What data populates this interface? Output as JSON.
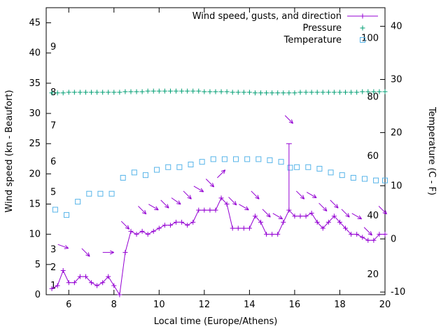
{
  "page": {
    "background": "#ffffff"
  },
  "chart_data": {
    "type": "line",
    "title": "",
    "xlabel": "Local time (Europe/Athens)",
    "ylabel_left": "Wind speed (kn - Beaufort)",
    "ylabel_right": "Temperature (C - F)",
    "xlim": [
      5,
      20
    ],
    "xticks": [
      6,
      8,
      10,
      12,
      14,
      16,
      18,
      20
    ],
    "ylim_left": [
      0,
      47.5
    ],
    "yticks_left": [
      0,
      5,
      10,
      15,
      20,
      25,
      30,
      35,
      40,
      45
    ],
    "ylim_right": [
      -10.5,
      43.5
    ],
    "yticks_right": [
      -10,
      0,
      10,
      20,
      30,
      40
    ],
    "grid": false,
    "beaufort_scale_labels": [
      {
        "label": "1",
        "kn": 1.5
      },
      {
        "label": "2",
        "kn": 4.5
      },
      {
        "label": "3",
        "kn": 7.5
      },
      {
        "label": "5",
        "kn": 17
      },
      {
        "label": "6",
        "kn": 22
      },
      {
        "label": "7",
        "kn": 28
      },
      {
        "label": "8",
        "kn": 33.5
      },
      {
        "label": "9",
        "kn": 41
      }
    ],
    "fahrenheit_scale_labels": [
      {
        "label": "20",
        "c": -6.7
      },
      {
        "label": "40",
        "c": 4.4
      },
      {
        "label": "60",
        "c": 15.6
      },
      {
        "label": "80",
        "c": 26.7
      },
      {
        "label": "100",
        "c": 37.8
      }
    ],
    "legend": {
      "position": "top-right-inside",
      "entries": [
        {
          "label": "Wind speed, gusts, and direction",
          "marker": "line-plus",
          "color": "#9400d3"
        },
        {
          "label": "Pressure",
          "marker": "plus",
          "color": "#009e73"
        },
        {
          "label": "Temperature",
          "marker": "square",
          "color": "#56b4e9"
        }
      ]
    },
    "series": {
      "wind": {
        "name": "Wind speed (kn)",
        "color": "#9400d3",
        "x0": 5.25,
        "dx": 0.25,
        "y": [
          1,
          1.5,
          4,
          2,
          2,
          3,
          3,
          2,
          1.5,
          2,
          3,
          1.5,
          0,
          7,
          10.5,
          10,
          10.5,
          10,
          10.5,
          11,
          11.5,
          11.5,
          12,
          12,
          11.5,
          12,
          14,
          14,
          14,
          14,
          16,
          15,
          11,
          11,
          11,
          11,
          13,
          12,
          10,
          10,
          10,
          12,
          14,
          13,
          13,
          13,
          13.5,
          12,
          11,
          12,
          13,
          12,
          11,
          10,
          10,
          9.5,
          9,
          9,
          10,
          10
        ]
      },
      "gust": {
        "name": "Gust",
        "color": "#9400d3",
        "x": 15.75,
        "y_low": 14,
        "y_high": 25
      },
      "pressure": {
        "name": "Pressure",
        "color": "#009e73",
        "x0": 5.25,
        "dx": 0.25,
        "y": [
          33.4,
          33.4,
          33.4,
          33.5,
          33.5,
          33.5,
          33.5,
          33.5,
          33.5,
          33.5,
          33.5,
          33.5,
          33.5,
          33.6,
          33.6,
          33.6,
          33.6,
          33.7,
          33.7,
          33.7,
          33.7,
          33.7,
          33.7,
          33.7,
          33.7,
          33.7,
          33.7,
          33.6,
          33.6,
          33.6,
          33.6,
          33.6,
          33.5,
          33.5,
          33.5,
          33.5,
          33.4,
          33.4,
          33.4,
          33.4,
          33.4,
          33.4,
          33.4,
          33.4,
          33.5,
          33.5,
          33.5,
          33.5,
          33.5,
          33.5,
          33.5,
          33.5,
          33.5,
          33.5,
          33.5,
          33.6,
          33.6,
          33.6,
          33.6,
          33.6
        ]
      },
      "temperature": {
        "name": "Temperature (C)",
        "color": "#56b4e9",
        "x": [
          5.4,
          5.9,
          6.4,
          6.9,
          7.4,
          7.9,
          8.4,
          8.9,
          9.4,
          9.9,
          10.4,
          10.9,
          11.4,
          11.9,
          12.4,
          12.9,
          13.4,
          13.9,
          14.4,
          14.9,
          15.4,
          15.8,
          16.1,
          16.6,
          17.1,
          17.6,
          18.1,
          18.6,
          19.1,
          19.6,
          20.0
        ],
        "c": [
          5.5,
          4.5,
          7.0,
          8.5,
          8.5,
          8.5,
          11.5,
          12.5,
          12.0,
          13.0,
          13.5,
          13.5,
          14.0,
          14.5,
          15.0,
          15.0,
          15.0,
          15.0,
          15.0,
          14.8,
          14.5,
          13.4,
          13.5,
          13.5,
          13.2,
          12.5,
          12.0,
          11.5,
          11.3,
          11.0,
          11.0
        ]
      },
      "direction_arrows": [
        {
          "x": 5.75,
          "kn": 8,
          "angle": 110
        },
        {
          "x": 6.75,
          "kn": 7,
          "angle": 135
        },
        {
          "x": 7.75,
          "kn": 7,
          "angle": 90
        },
        {
          "x": 8.5,
          "kn": 11.5,
          "angle": 135
        },
        {
          "x": 9.25,
          "kn": 14,
          "angle": 135
        },
        {
          "x": 9.75,
          "kn": 14.5,
          "angle": 120
        },
        {
          "x": 10.25,
          "kn": 15,
          "angle": 135
        },
        {
          "x": 10.75,
          "kn": 15.5,
          "angle": 125
        },
        {
          "x": 11.25,
          "kn": 16.5,
          "angle": 135
        },
        {
          "x": 11.75,
          "kn": 17.5,
          "angle": 120
        },
        {
          "x": 12.25,
          "kn": 18.5,
          "angle": 135
        },
        {
          "x": 12.75,
          "kn": 20,
          "angle": 45
        },
        {
          "x": 13.25,
          "kn": 15.5,
          "angle": 135
        },
        {
          "x": 13.75,
          "kn": 14.5,
          "angle": 120
        },
        {
          "x": 14.25,
          "kn": 16.5,
          "angle": 135
        },
        {
          "x": 14.75,
          "kn": 13.5,
          "angle": 135
        },
        {
          "x": 15.25,
          "kn": 13,
          "angle": 120
        },
        {
          "x": 15.75,
          "kn": 29,
          "angle": 135
        },
        {
          "x": 16.25,
          "kn": 16.5,
          "angle": 135
        },
        {
          "x": 16.75,
          "kn": 16.5,
          "angle": 120
        },
        {
          "x": 17.25,
          "kn": 14.5,
          "angle": 135
        },
        {
          "x": 17.75,
          "kn": 15,
          "angle": 135
        },
        {
          "x": 18.25,
          "kn": 13.5,
          "angle": 135
        },
        {
          "x": 18.75,
          "kn": 13,
          "angle": 120
        },
        {
          "x": 19.25,
          "kn": 10.5,
          "angle": 135
        },
        {
          "x": 19.9,
          "kn": 14,
          "angle": 135
        }
      ]
    }
  }
}
